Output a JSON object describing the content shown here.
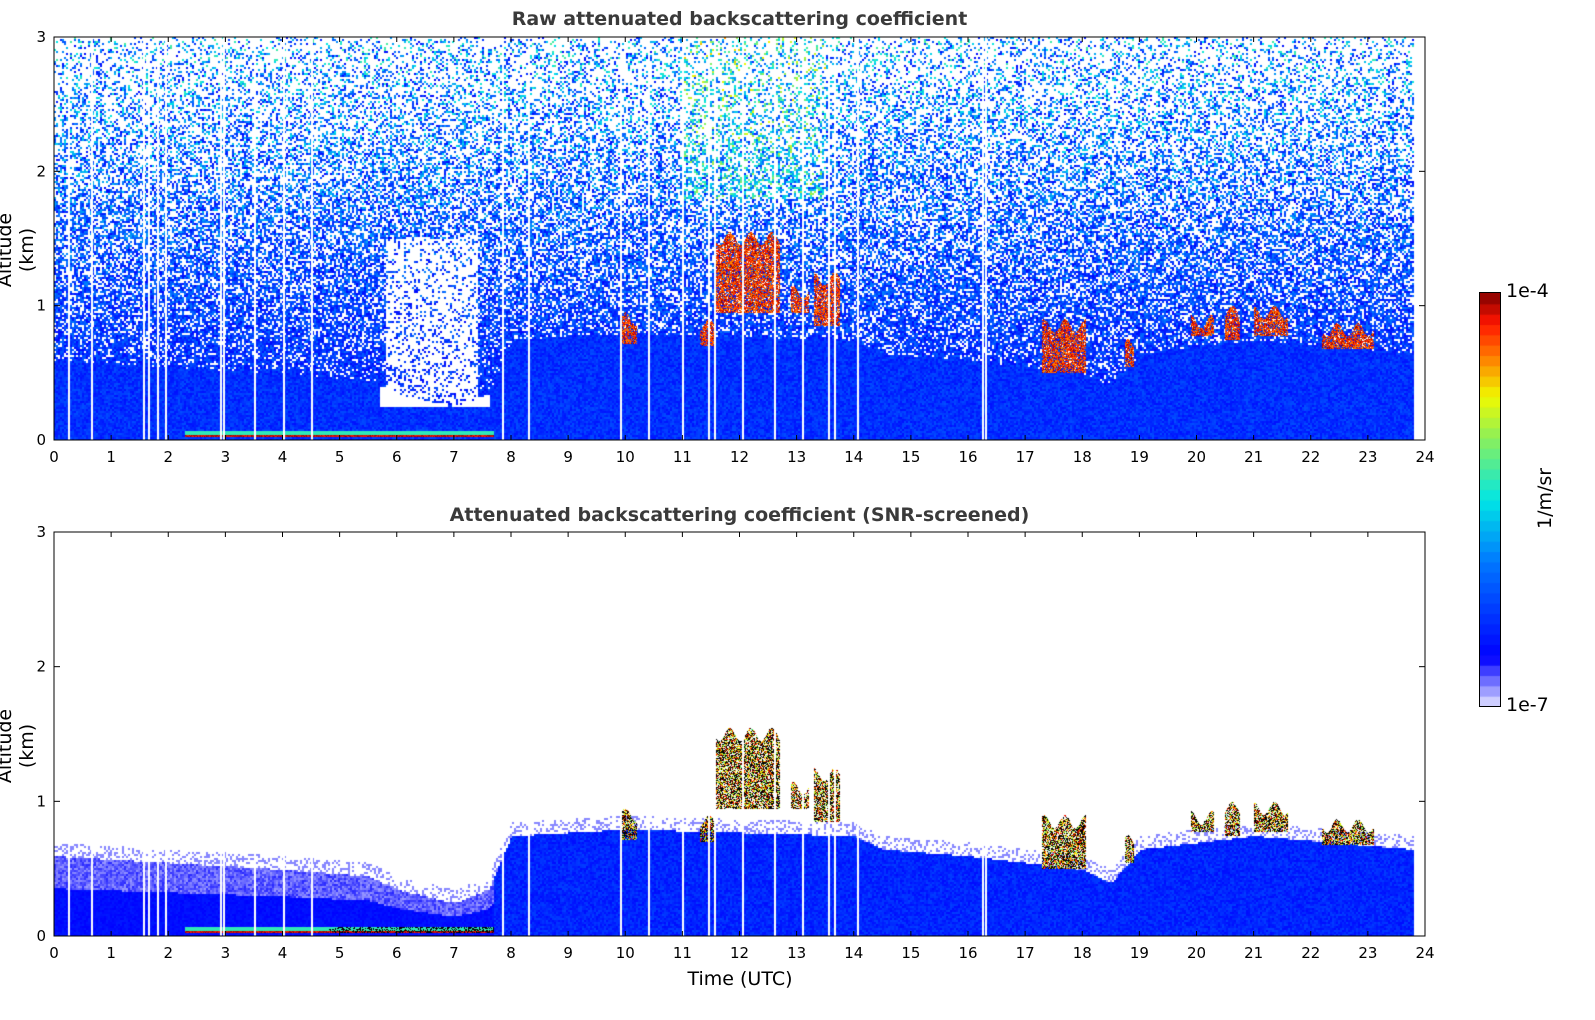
{
  "chart_data": [
    {
      "type": "heatmap",
      "title": "Raw attenuated backscattering coefficient",
      "xlabel": "",
      "ylabel": "Altitude (km)",
      "xlim": [
        0,
        24
      ],
      "ylim": [
        0,
        3
      ],
      "xticks": [
        "0",
        "1",
        "2",
        "3",
        "4",
        "5",
        "6",
        "7",
        "8",
        "9",
        "10",
        "11",
        "12",
        "13",
        "14",
        "15",
        "16",
        "17",
        "18",
        "19",
        "20",
        "21",
        "22",
        "23",
        "24"
      ],
      "yticks": [
        "0",
        "1",
        "2",
        "3"
      ],
      "data_end_time": 23.8
    },
    {
      "type": "heatmap",
      "title": "Attenuated backscattering coefficient (SNR-screened)",
      "xlabel": "Time (UTC)",
      "ylabel": "Altitude (km)",
      "xlim": [
        0,
        24
      ],
      "ylim": [
        0,
        3
      ],
      "xticks": [
        "0",
        "1",
        "2",
        "3",
        "4",
        "5",
        "6",
        "7",
        "8",
        "9",
        "10",
        "11",
        "12",
        "13",
        "14",
        "15",
        "16",
        "17",
        "18",
        "19",
        "20",
        "21",
        "22",
        "23",
        "24"
      ],
      "yticks": [
        "0",
        "1",
        "2",
        "3"
      ],
      "data_end_time": 23.8
    }
  ],
  "features": {
    "aerosol_layer_top_km": [
      [
        0,
        0.6
      ],
      [
        2,
        0.55
      ],
      [
        4,
        0.5
      ],
      [
        5.5,
        0.45
      ],
      [
        6,
        0.35
      ],
      [
        7,
        0.25
      ],
      [
        7.6,
        0.35
      ],
      [
        8,
        0.75
      ],
      [
        10,
        0.8
      ],
      [
        14,
        0.75
      ],
      [
        14.5,
        0.65
      ],
      [
        16,
        0.6
      ],
      [
        18,
        0.5
      ],
      [
        18.5,
        0.4
      ],
      [
        19,
        0.65
      ],
      [
        21,
        0.75
      ],
      [
        23.8,
        0.65
      ]
    ],
    "surface_layer": {
      "t_start": 2.3,
      "t_end": 7.7,
      "z_top_km": 0.07
    },
    "clouds": [
      {
        "t0": 9.9,
        "t1": 10.2,
        "z0": 0.72,
        "z1": 0.9
      },
      {
        "t0": 11.3,
        "t1": 11.55,
        "z0": 0.7,
        "z1": 0.85
      },
      {
        "t0": 11.55,
        "t1": 12.7,
        "z0": 0.95,
        "z1": 1.5
      },
      {
        "t0": 12.9,
        "t1": 13.2,
        "z0": 0.95,
        "z1": 1.1
      },
      {
        "t0": 13.3,
        "t1": 13.75,
        "z0": 0.85,
        "z1": 1.2
      },
      {
        "t0": 17.3,
        "t1": 18.05,
        "z0": 0.5,
        "z1": 0.85
      },
      {
        "t0": 18.75,
        "t1": 18.9,
        "z0": 0.55,
        "z1": 0.7
      },
      {
        "t0": 19.9,
        "t1": 20.3,
        "z0": 0.78,
        "z1": 0.88
      },
      {
        "t0": 20.5,
        "t1": 20.75,
        "z0": 0.75,
        "z1": 0.95
      },
      {
        "t0": 21,
        "t1": 21.6,
        "z0": 0.78,
        "z1": 0.95
      },
      {
        "t0": 22.2,
        "t1": 23.1,
        "z0": 0.68,
        "z1": 0.82
      }
    ],
    "missing_profiles_utc": [
      0.25,
      0.65,
      1.55,
      1.65,
      1.8,
      1.95,
      2.9,
      2.95,
      3.5,
      4.0,
      4.5,
      7.85,
      8.3,
      9.9,
      10.4,
      11.0,
      11.45,
      11.55,
      12.05,
      12.6,
      13.1,
      13.55,
      13.65,
      14.05,
      16.25,
      16.3
    ]
  },
  "colorbar": {
    "min_label": "1e-7",
    "max_label": "1e-4",
    "label": "1/m/sr",
    "scale": "log"
  },
  "colors": {
    "title": "#3a3a3a"
  }
}
